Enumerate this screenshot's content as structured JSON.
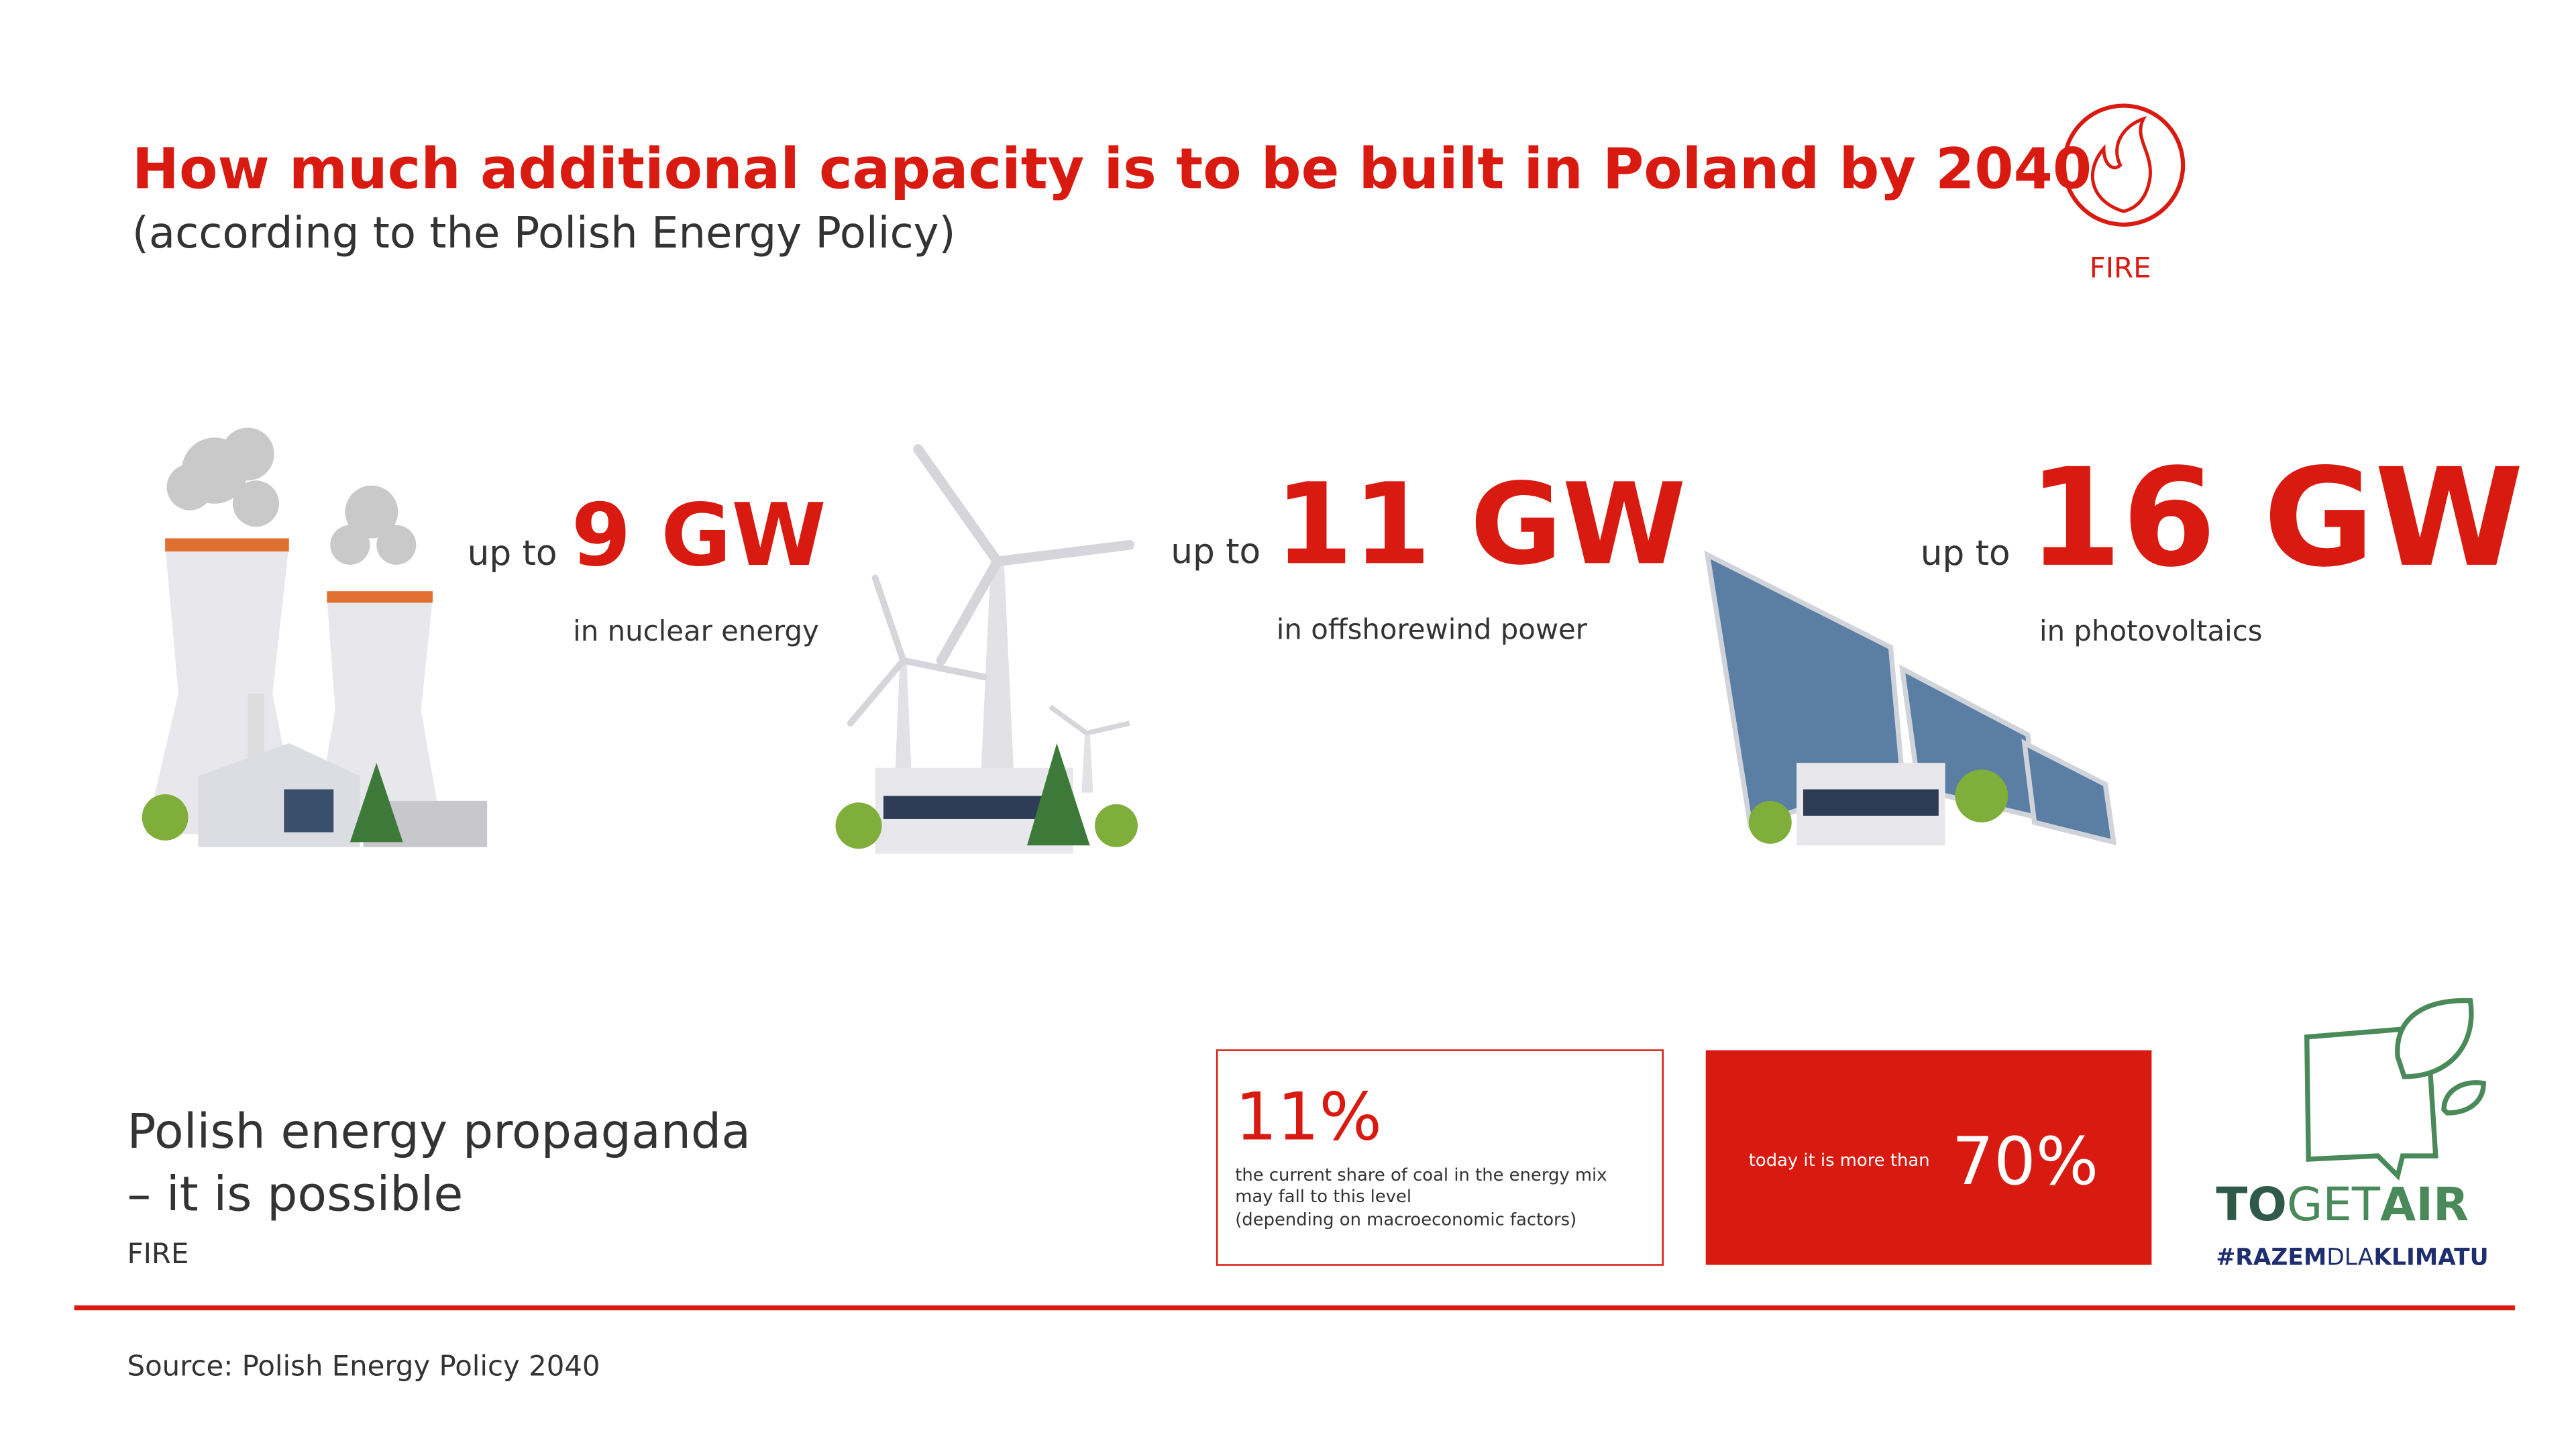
{
  "header": {
    "title": "How much additional capacity is to be built in Poland by 2040",
    "subtitle": "(according to the Polish Energy Policy)",
    "badge": "FIRE"
  },
  "items": [
    {
      "prefix": "up to",
      "value": "9 GW",
      "description": "in nuclear energy"
    },
    {
      "prefix": "up to",
      "value": "11 GW",
      "description": "in offshorewind power"
    },
    {
      "prefix": "up to",
      "value": "16 GW",
      "description": "in photovoltaics"
    }
  ],
  "footer": {
    "lines": [
      "Polish energy propaganda",
      "– it is possible"
    ],
    "author": "FIRE"
  },
  "box_outline": {
    "value": "11%",
    "lines": [
      "the current share of coal in the energy mix",
      "may fall to this level",
      "(depending on macroeconomic factors)"
    ]
  },
  "box_filled": {
    "text": "today it is more than",
    "value": "70%"
  },
  "logo": {
    "parts": [
      "TO",
      "GET",
      "AIR"
    ],
    "hashtag_parts": [
      "#RAZEM",
      "DLA",
      "KLIMATU"
    ]
  },
  "source": "Source: Polish Energy Policy 2040"
}
